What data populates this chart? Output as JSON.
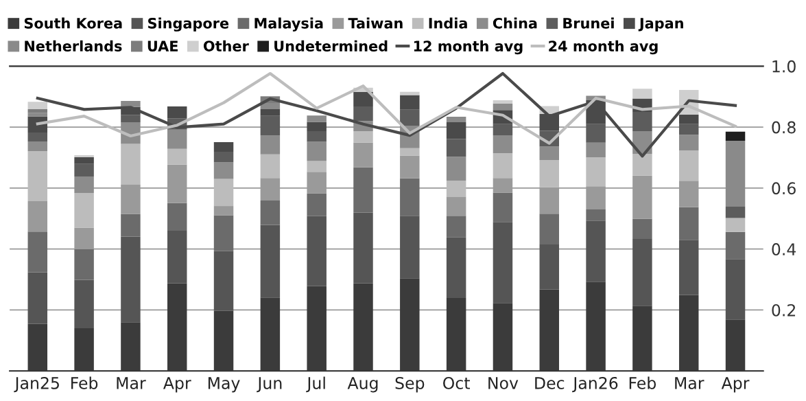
{
  "chart_data": {
    "type": "bar",
    "stacked": true,
    "categories": [
      "Jan25",
      "Feb",
      "Mar",
      "Apr",
      "May",
      "Jun",
      "Jul",
      "Aug",
      "Sep",
      "Oct",
      "Nov",
      "Dec",
      "Jan26",
      "Feb",
      "Mar",
      "Apr"
    ],
    "ylim": [
      0,
      1.0
    ],
    "yticks": [
      {
        "value": 0,
        "label": null
      },
      0.2,
      0.4,
      0.6,
      0.8,
      {
        "value": 1.0,
        "label": "1.0"
      }
    ],
    "grid": "y",
    "legend": "top",
    "series": [
      {
        "name": "South Korea",
        "color": "#3b3b3b",
        "values": [
          0.154,
          0.14,
          0.16,
          0.287,
          0.197,
          0.241,
          0.278,
          0.287,
          0.304,
          0.239,
          0.223,
          0.267,
          0.293,
          0.214,
          0.249,
          0.169
        ]
      },
      {
        "name": "Singapore",
        "color": "#555555",
        "values": [
          0.17,
          0.159,
          0.281,
          0.173,
          0.196,
          0.238,
          0.23,
          0.233,
          0.205,
          0.199,
          0.266,
          0.148,
          0.199,
          0.219,
          0.181,
          0.198
        ]
      },
      {
        "name": "Malaysia",
        "color": "#6b6b6b",
        "values": [
          0.133,
          0.1,
          0.074,
          0.091,
          0.117,
          0.08,
          0.074,
          0.148,
          0.123,
          0.071,
          0.096,
          0.101,
          0.038,
          0.066,
          0.107,
          0.089
        ]
      },
      {
        "name": "Taiwan",
        "color": "#9a9a9a",
        "values": [
          0.1,
          0.071,
          0.096,
          0.126,
          0.031,
          0.074,
          0.071,
          0.081,
          0.075,
          0.063,
          0.048,
          0.087,
          0.076,
          0.142,
          0.087,
          0
        ]
      },
      {
        "name": "India",
        "color": "#bcbcbc",
        "values": [
          0.164,
          0.114,
          0.134,
          0.052,
          0.089,
          0.078,
          0.036,
          0.038,
          0.024,
          0.052,
          0.081,
          0.089,
          0.095,
          0.071,
          0.099,
          0.046
        ]
      },
      {
        "name": "China",
        "color": "#8c8c8c",
        "values": [
          0.032,
          0.054,
          0.071,
          0.063,
          0.054,
          0.061,
          0.063,
          0.033,
          0.074,
          0.079,
          0.059,
          0.044,
          0.048,
          0.075,
          0.052,
          0
        ]
      },
      {
        "name": "Brunei",
        "color": "#5c5c5c",
        "values": [
          0.029,
          0.041,
          0.024,
          0.037,
          0.035,
          0.065,
          0.035,
          0.048,
          0.052,
          0.058,
          0.037,
          0.052,
          0.061,
          0.063,
          0.035,
          0.037
        ]
      },
      {
        "name": "Japan",
        "color": "#4a4a4a",
        "values": [
          0.053,
          0.022,
          0.026,
          0.039,
          0.032,
          0.022,
          0.03,
          0.048,
          0.048,
          0.055,
          0.046,
          0.055,
          0.078,
          0.044,
          0.031,
          0
        ]
      },
      {
        "name": "Netherlands",
        "color": "#8a8a8a",
        "values": [
          0.012,
          0,
          0.02,
          0,
          0,
          0.02,
          0.021,
          0,
          0,
          0.018,
          0.021,
          0,
          0.015,
          0,
          0,
          0.216
        ]
      },
      {
        "name": "UAE",
        "color": "#7c7c7c",
        "values": [
          0.012,
          0,
          0,
          0,
          0,
          0.022,
          0,
          0,
          0,
          0,
          0,
          0,
          0,
          0,
          0,
          0
        ]
      },
      {
        "name": "Other",
        "color": "#cfcfcf",
        "values": [
          0.024,
          0.007,
          0,
          0,
          0,
          0,
          0,
          0.013,
          0.011,
          0,
          0.011,
          0.026,
          0,
          0.032,
          0.081,
          0
        ]
      },
      {
        "name": "Undetermined",
        "color": "#1e1e1e",
        "values": [
          0,
          0,
          0,
          0,
          0,
          0,
          0,
          0,
          0,
          0,
          0,
          0,
          0,
          0,
          0,
          0.03
        ]
      },
      {
        "name": "12 month avg",
        "type": "line",
        "color": "#4a4a4a",
        "values": [
          0.895,
          0.858,
          0.865,
          0.799,
          0.81,
          0.893,
          0.854,
          0.81,
          0.773,
          0.862,
          0.976,
          0.836,
          0.885,
          0.705,
          0.887,
          0.871
        ]
      },
      {
        "name": "24 month avg",
        "type": "line",
        "color": "#bdbdbd",
        "values": [
          0.811,
          0.836,
          0.771,
          0.806,
          0.88,
          0.976,
          0.862,
          0.935,
          0.78,
          0.865,
          0.839,
          0.747,
          0.895,
          0.858,
          0.869,
          0.803
        ]
      }
    ]
  }
}
